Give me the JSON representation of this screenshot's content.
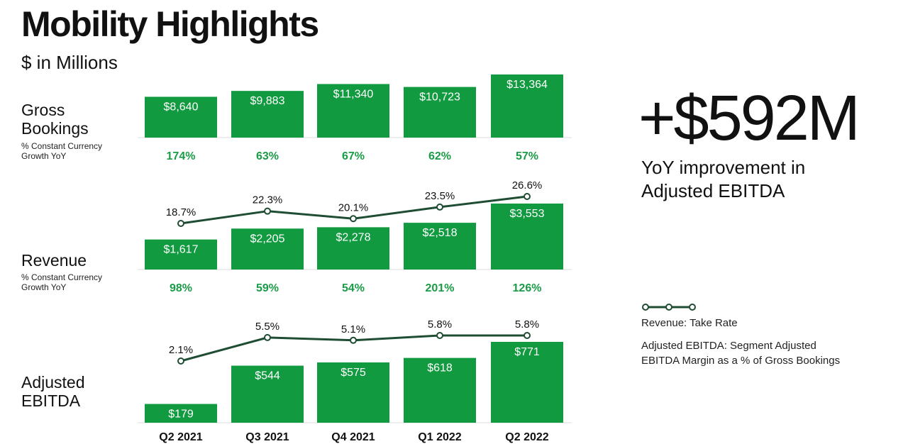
{
  "title": "Mobility Highlights",
  "subtitle": "$ in Millions",
  "rows": {
    "gross_bookings": {
      "label": "Gross\nBookings",
      "sublabel": "% Constant Currency\nGrowth YoY"
    },
    "revenue": {
      "label": "Revenue",
      "sublabel": "% Constant Currency\nGrowth YoY"
    },
    "ebitda": {
      "label": "Adjusted\nEBITDA"
    }
  },
  "kpi": {
    "value": "+$592M",
    "caption": "YoY improvement in Adjusted EBITDA"
  },
  "legend": {
    "take_rate": "Revenue: Take Rate",
    "ebitda_margin": "Adjusted EBITDA: Segment Adjusted EBITDA Margin as a % of Gross Bookings"
  },
  "colors": {
    "bar": "#119a3f",
    "line": "#1f4d33",
    "growth_text": "#1a9c46"
  },
  "chart_data": [
    {
      "type": "bar",
      "categories": [
        "Q2 2021",
        "Q3 2021",
        "Q4 2021",
        "Q1 2022",
        "Q2 2022"
      ],
      "series": [
        {
          "name": "Gross Bookings",
          "values": [
            8640,
            9883,
            11340,
            10723,
            13364
          ]
        }
      ],
      "value_labels": [
        "$8,640",
        "$9,883",
        "$11,340",
        "$10,723",
        "$13,364"
      ],
      "growth_labels": [
        "174%",
        "63%",
        "67%",
        "62%",
        "57%"
      ]
    },
    {
      "type": "bar",
      "categories": [
        "Q2 2021",
        "Q3 2021",
        "Q4 2021",
        "Q1 2022",
        "Q2 2022"
      ],
      "series": [
        {
          "name": "Revenue",
          "values": [
            1617,
            2205,
            2278,
            2518,
            3553
          ]
        }
      ],
      "value_labels": [
        "$1,617",
        "$2,205",
        "$2,278",
        "$2,518",
        "$3,553"
      ],
      "growth_labels": [
        "98%",
        "59%",
        "54%",
        "201%",
        "126%"
      ],
      "line": {
        "name": "Revenue: Take Rate",
        "values": [
          18.7,
          22.3,
          20.1,
          23.5,
          26.6
        ],
        "labels": [
          "18.7%",
          "22.3%",
          "20.1%",
          "23.5%",
          "26.6%"
        ]
      }
    },
    {
      "type": "bar",
      "categories": [
        "Q2 2021",
        "Q3 2021",
        "Q4 2021",
        "Q1 2022",
        "Q2 2022"
      ],
      "series": [
        {
          "name": "Adjusted EBITDA",
          "values": [
            179,
            544,
            575,
            618,
            771
          ]
        }
      ],
      "value_labels": [
        "$179",
        "$544",
        "$575",
        "$618",
        "$771"
      ],
      "line": {
        "name": "Adjusted EBITDA Margin",
        "values": [
          2.1,
          5.5,
          5.1,
          5.8,
          5.8
        ],
        "labels": [
          "2.1%",
          "5.5%",
          "5.1%",
          "5.8%",
          "5.8%"
        ]
      }
    }
  ]
}
